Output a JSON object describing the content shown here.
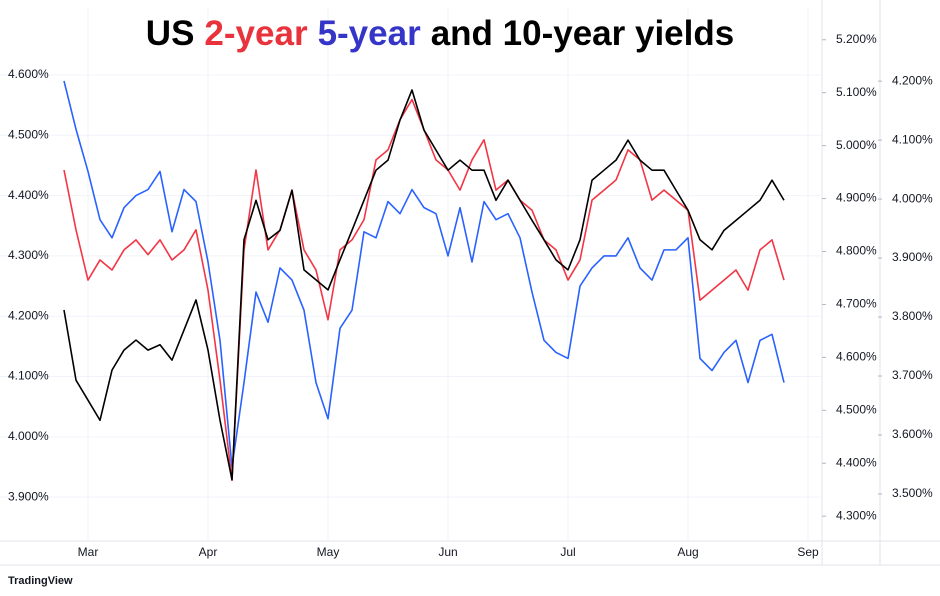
{
  "chart_data": {
    "type": "line",
    "title_parts": [
      {
        "text": "US",
        "color": "#000000"
      },
      {
        "text": "2-year",
        "color": "#e8323c"
      },
      {
        "text": "5-year",
        "color": "#3535c8"
      },
      {
        "text": "and 10-year yields",
        "color": "#000000"
      }
    ],
    "brand": "TradingView",
    "categories": [
      null,
      null,
      "Mar",
      null,
      null,
      null,
      null,
      null,
      null,
      null,
      null,
      null,
      "Apr",
      null,
      null,
      null,
      null,
      null,
      null,
      null,
      null,
      null,
      "May",
      null,
      null,
      null,
      null,
      null,
      null,
      null,
      null,
      null,
      "Jun",
      null,
      null,
      null,
      null,
      null,
      null,
      null,
      null,
      null,
      "Jul",
      null,
      null,
      null,
      null,
      null,
      null,
      null,
      null,
      null,
      "Aug",
      null,
      null,
      null,
      null,
      null,
      null,
      null,
      null,
      null,
      "Sep"
    ],
    "grid": true,
    "ylim": [
      3.829,
      4.711
    ],
    "yticks": [
      {
        "value": 3.9,
        "label": "3.900%"
      },
      {
        "value": 4.0,
        "label": "4.000%"
      },
      {
        "value": 4.1,
        "label": "4.100%"
      },
      {
        "value": 4.2,
        "label": "4.200%"
      },
      {
        "value": 4.3,
        "label": "4.300%"
      },
      {
        "value": 4.4,
        "label": "4.400%"
      },
      {
        "value": 4.5,
        "label": "4.500%"
      },
      {
        "value": 4.6,
        "label": "4.600%"
      }
    ],
    "y2lim": [
      4.255,
      5.26
    ],
    "y2ticks": [
      {
        "value": 4.3,
        "label": "4.300%"
      },
      {
        "value": 4.4,
        "label": "4.400%"
      },
      {
        "value": 4.5,
        "label": "4.500%"
      },
      {
        "value": 4.6,
        "label": "4.600%"
      },
      {
        "value": 4.7,
        "label": "4.700%"
      },
      {
        "value": 4.8,
        "label": "4.800%"
      },
      {
        "value": 4.9,
        "label": "4.900%"
      },
      {
        "value": 5.0,
        "label": "5.000%"
      },
      {
        "value": 5.1,
        "label": "5.100%"
      },
      {
        "value": 5.2,
        "label": "5.200%"
      }
    ],
    "y3lim": [
      3.422,
      4.324
    ],
    "y3ticks": [
      {
        "value": 3.5,
        "label": "3.500%"
      },
      {
        "value": 3.6,
        "label": "3.600%"
      },
      {
        "value": 3.7,
        "label": "3.700%"
      },
      {
        "value": 3.8,
        "label": "3.800%"
      },
      {
        "value": 3.9,
        "label": "3.900%"
      },
      {
        "value": 4.0,
        "label": "4.000%"
      },
      {
        "value": 4.1,
        "label": "4.100%"
      },
      {
        "value": 4.2,
        "label": "4.200%"
      }
    ],
    "series": [
      {
        "color": "#2962ff",
        "axis": "y",
        "values": [
          4.59,
          4.51,
          4.44,
          4.36,
          4.33,
          4.38,
          4.4,
          4.41,
          4.44,
          4.34,
          4.41,
          4.39,
          4.29,
          4.16,
          3.95,
          4.09,
          4.24,
          4.19,
          4.28,
          4.26,
          4.21,
          4.09,
          4.03,
          4.18,
          4.21,
          4.34,
          4.33,
          4.39,
          4.37,
          4.41,
          4.38,
          4.37,
          4.3,
          4.38,
          4.29,
          4.39,
          4.36,
          4.37,
          4.33,
          4.24,
          4.16,
          4.14,
          4.13,
          4.25,
          4.28,
          4.3,
          4.3,
          4.33,
          4.28,
          4.26,
          4.31,
          4.31,
          4.33,
          4.13,
          4.11,
          4.14,
          4.16,
          4.09,
          4.16,
          4.17,
          4.09,
          null,
          null
        ]
      },
      {
        "color": "#f23645",
        "axis": "y2",
        "values": [
          4.954,
          4.841,
          4.746,
          4.784,
          4.765,
          4.803,
          4.822,
          4.794,
          4.822,
          4.784,
          4.803,
          4.841,
          4.727,
          4.557,
          4.368,
          4.803,
          4.954,
          4.803,
          4.841,
          4.916,
          4.803,
          4.765,
          4.671,
          4.803,
          4.822,
          4.86,
          4.973,
          4.992,
          5.049,
          5.087,
          5.03,
          4.973,
          4.954,
          4.916,
          4.973,
          5.011,
          4.916,
          4.935,
          4.897,
          4.878,
          4.822,
          4.803,
          4.746,
          4.784,
          4.897,
          4.916,
          4.935,
          4.992,
          4.973,
          4.897,
          4.916,
          4.897,
          4.878,
          4.708,
          4.727,
          4.746,
          4.765,
          4.727,
          4.803,
          4.822,
          4.746,
          null,
          null
        ]
      },
      {
        "color": "#000000",
        "axis": "y3",
        "values": [
          3.812,
          3.693,
          3.659,
          3.625,
          3.71,
          3.744,
          3.761,
          3.744,
          3.753,
          3.727,
          3.778,
          3.829,
          3.744,
          3.625,
          3.524,
          3.931,
          3.998,
          3.931,
          3.947,
          4.015,
          3.88,
          3.863,
          3.846,
          3.897,
          3.947,
          3.998,
          4.049,
          4.066,
          4.134,
          4.185,
          4.117,
          4.083,
          4.049,
          4.066,
          4.049,
          4.049,
          3.998,
          4.032,
          3.998,
          3.964,
          3.931,
          3.897,
          3.88,
          3.931,
          4.032,
          4.049,
          4.066,
          4.1,
          4.066,
          4.049,
          4.049,
          4.015,
          3.981,
          3.931,
          3.914,
          3.947,
          3.964,
          3.981,
          3.998,
          4.032,
          3.998,
          null,
          null
        ]
      }
    ]
  }
}
